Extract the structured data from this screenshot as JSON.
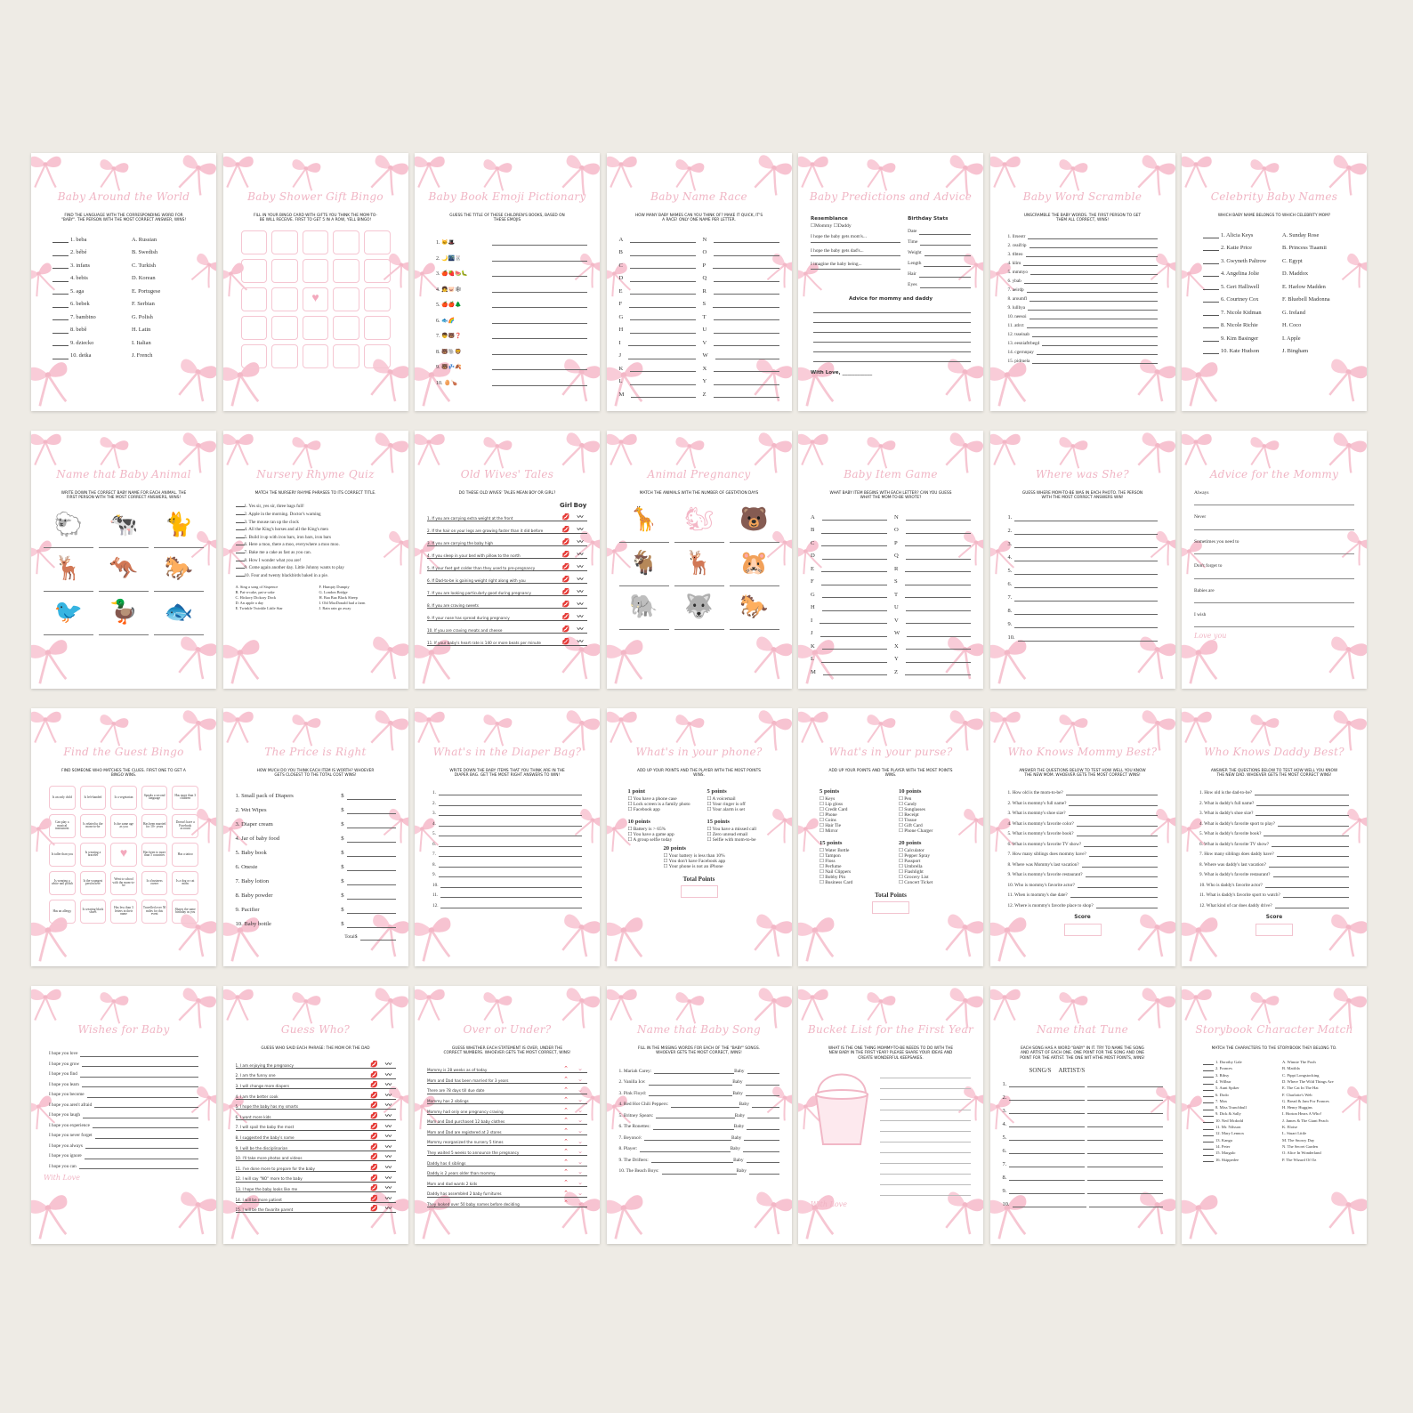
{
  "colors": {
    "background": "#eeebe5",
    "card": "#ffffff",
    "accent_pink": "#f0b5c4",
    "bow_pink": "#f4a9be"
  },
  "cards": [
    {
      "title": "Baby Around the World",
      "subtitle": "Find the language with the corresponding word for \"baby\". The person with the most correct answer, wins!",
      "kind": "match",
      "left": [
        "1. beba",
        "2. bébé",
        "3. infans",
        "4. bebis",
        "5. aga",
        "6. bebek",
        "7. bambino",
        "8. bebê",
        "9. dziecko",
        "10. detka"
      ],
      "right": [
        "A. Russian",
        "B. Swedish",
        "C. Turkish",
        "D. Korean",
        "E. Portugese",
        "F. Serbian",
        "G. Polish",
        "H. Latin",
        "I. Italian",
        "J. French"
      ]
    },
    {
      "title": "Baby Shower Gift Bingo",
      "subtitle": "Fill in your bingo card with gifts you think the mom-to-be will receive. First to get 5 in a row, yell bingo!",
      "kind": "bingo",
      "cells": []
    },
    {
      "title": "Baby Book Emoji Pictionary",
      "subtitle": "Guess the title of these children's books, based on these emojis",
      "kind": "emoji",
      "items": [
        "1. 🐱🎩",
        "2. 🌙🌃🐰",
        "3. 🍎🍓🍉🐛",
        "4. 👧🐷🕸",
        "5. 🍎🍎🌲",
        "6. 🐟🌈",
        "7. 👦🐻❓",
        "8. 🐻🐘🦁",
        "9. 🐻💤🍂",
        "10. 🥚🍗"
      ]
    },
    {
      "title": "Baby Name Race",
      "subtitle": "How many baby names can you think of? Make it quick, it's a race! Only one name per letter.",
      "kind": "letters",
      "left": [
        "A",
        "B",
        "C",
        "D",
        "E",
        "F",
        "G",
        "H",
        "I",
        "J",
        "K",
        "L",
        "M"
      ],
      "right": [
        "N",
        "O",
        "P",
        "Q",
        "R",
        "S",
        "T",
        "U",
        "V",
        "W",
        "X",
        "Y",
        "Z"
      ]
    },
    {
      "title": "Baby Predictions and Advice",
      "subtitle": "",
      "kind": "predictions",
      "resemblance": "Resemblance",
      "mommy": "Mommy",
      "daddy": "Daddy",
      "hopes": [
        "I hope the baby gets mom's...",
        "I hope the baby gets dad's...",
        "I imagine the baby being..."
      ],
      "stats_title": "Birthday Stats",
      "stats": [
        "Date",
        "Time",
        "Weight",
        "Length",
        "Hair",
        "Eyes"
      ],
      "advice": "Advice for mommy and daddy",
      "footer": "With Love,"
    },
    {
      "title": "Baby Word Scramble",
      "subtitle": "Unscramble the baby words. The first person to get them all correct, wins!",
      "kind": "lines",
      "items": [
        "1. llrseotr",
        "2. ceaifrip",
        "3. tlbteo",
        "4. klim",
        "5. mmmyo",
        "6. ybab",
        "7. aeirdp",
        "8. aroumfl",
        "9. lullbya",
        "10. neesoi",
        "11. atlrct",
        "12. tsseinab",
        "13. eesniaftrbegd",
        "14. cgernnpay",
        "15. pidruela"
      ]
    },
    {
      "title": "Celebrity Baby Names",
      "subtitle": "Which baby name belongs to which celebrity mom?",
      "kind": "match",
      "left": [
        "1. Alicia Keys",
        "2. Katie Price",
        "3. Gwyneth Paltrow",
        "4. Angelina Jolie",
        "5. Geri Halliwell",
        "6. Courtney Cox",
        "7. Nicole Kidman",
        "8. Nicole Richie",
        "9. Kim Basinger",
        "10. Kate Hudson"
      ],
      "right": [
        "A. Sunday Rose",
        "B. Princess Tiaamii",
        "C. Egypt",
        "D. Maddox",
        "E. Harlow Madden",
        "F. Bluebell Madonna",
        "G. Ireland",
        "H. Coco",
        "I. Apple",
        "J. Bingham"
      ]
    },
    {
      "title": "Name that Baby Animal",
      "subtitle": "Write down the correct baby name for each animal. The first person with the most correct answers, wins!",
      "kind": "animals",
      "icons": [
        "sheep-icon",
        "cow-icon",
        "cat-icon",
        "deer-icon",
        "kangaroo-icon",
        "horse-icon",
        "bird-icon",
        "duck-icon",
        "fish-icon"
      ]
    },
    {
      "title": "Nursery Rhyme Quiz",
      "subtitle": "Match the nursery rhyme phrases to its correct title.",
      "kind": "rhyme",
      "items": [
        "1. Yes sir, yes sir, three bags full!",
        "2. Apple in the morning. Doctor's warning",
        "3. The mouse ran up the clock",
        "4. All the King's horses and all the King's men",
        "5. Build it up with iron bars, iron bars, iron bars",
        "6. Here a moo, there a moo, everywhere a moo moo.",
        "7. Bake me a cake as fast as you can.",
        "8. How I wonder what you are!",
        "9. Come again another day. Little Johnny wants to play",
        "10. Four and twenty blackbirds baked in a pie."
      ],
      "left": [
        "A. Sing a song of Sixpence",
        "B. Pat-a-cake, pat-a-cake",
        "C. Hickory Dickory Dock",
        "D. An apple a day",
        "E. Twinkle Twinkle Little Star"
      ],
      "right": [
        "F. Humpty Dumpty",
        "G. London Bridge",
        "H. Baa Baa Black Sheep",
        "I. Old MacDonald had a farm",
        "J. Rain rain go away"
      ]
    },
    {
      "title": "Old Wives' Tales",
      "subtitle": "Do these old wives' tales mean boy or girl?",
      "kind": "choice",
      "col_a": "Girl",
      "col_b": "Boy",
      "mark_a": "lips-icon",
      "mark_b": "mustache-icon",
      "items": [
        "1. If you are carrying extra weight at the front",
        "2. If the hair on your legs are growing faster than it did before",
        "3. If you are carrying the baby high",
        "4. If you sleep in your bed with pillow to the north",
        "5. If your feet get colder than they used to pre-pregnancy",
        "6. If Dad-to-be is gaining weight right along with you",
        "7. If you are looking particularly good during pregnancy",
        "8. If you are craving sweets",
        "9. If your nose has spread during pregnancy",
        "10. If you are craving meats and cheese",
        "11. If your baby's heart rate is 140 or more beats per minute"
      ]
    },
    {
      "title": "Animal Pregnancy",
      "subtitle": "Match the animals with the number of gestation days",
      "kind": "animals",
      "icons": [
        "giraffe-icon",
        "squirrel-icon",
        "bear-icon",
        "goat-icon",
        "deer-icon",
        "hamster-icon",
        "elephant-icon",
        "wolf-icon",
        "horse-icon"
      ]
    },
    {
      "title": "Baby Item Game",
      "subtitle": "What baby item begins with each letter? Can you guess what the mom-to-be wrote?",
      "kind": "letters",
      "left": [
        "A",
        "B",
        "C",
        "D",
        "E",
        "F",
        "G",
        "H",
        "I",
        "J",
        "K",
        "L",
        "M"
      ],
      "right": [
        "N",
        "O",
        "P",
        "Q",
        "R",
        "S",
        "T",
        "U",
        "V",
        "W",
        "X",
        "Y",
        "Z"
      ]
    },
    {
      "title": "Where was She?",
      "subtitle": "Guess where mom-to-be was in each photo. The person with the most correct answers win!",
      "kind": "lines",
      "items": [
        "1.",
        "2.",
        "3.",
        "4.",
        "5.",
        "6.",
        "7.",
        "8.",
        "9.",
        "10."
      ]
    },
    {
      "title": "Advice for the Mommy",
      "subtitle": "",
      "kind": "advice",
      "items": [
        "Always",
        "Never",
        "Sometimes you need to",
        "Don't forget to",
        "Babies are",
        "I wish"
      ],
      "footer": "Love you"
    },
    {
      "title": "Find the Guest Bingo",
      "subtitle": "Find someone who matches the clues. First one to get a bingo wins.",
      "kind": "bingo",
      "cells": [
        "Is an only child",
        "Is left-handed",
        "Is a vegetarian",
        "Speaks a second language",
        "Has more than 3 children",
        "Can play a musical instrument",
        "Is related to the mom-to-be",
        "Is the same age as you",
        "Has been married for 10+ years",
        "Doesn't have a Facebook account",
        "Is taller than you",
        "Is wearing a bracelet",
        "",
        "Has been to more than 5 countries",
        "Has a tattoo",
        "Is wearing a white nail polish",
        "Is the youngest person here",
        "Went to school with the mom-to-be",
        "Is a business owner",
        "Is a dog or cat mom",
        "Has an allergy",
        "Is wearing black shoes",
        "Has less than 3 letters in their name",
        "Travelled over 50 miles for this event",
        "Shares the same birthday as you"
      ]
    },
    {
      "title": "The Price is Right",
      "subtitle": "How much do you think each item is worth? Whoever gets closest to the total cost wins!",
      "kind": "price",
      "currency": "$",
      "items": [
        "1. Small pack of Diapers",
        "2. Wet Wipes",
        "3. Diaper cream",
        "4. Jar of baby food",
        "5. Baby book",
        "6. Onesie",
        "7. Baby lotion",
        "8. Baby powder",
        "9. Pacifier",
        "10. Baby bottle"
      ],
      "footer": "Total"
    },
    {
      "title": "What's in the Diaper Bag?",
      "subtitle": "Write down the baby items that you think are in the diaper bag. Get the most right answers to win!",
      "kind": "lines",
      "items": [
        "1.",
        "2.",
        "3.",
        "4.",
        "5.",
        "6.",
        "7.",
        "8.",
        "9.",
        "10.",
        "11.",
        "12."
      ]
    },
    {
      "title": "What's in your phone?",
      "subtitle": "Add up your points and the player with the most points wins.",
      "kind": "points",
      "groups": [
        {
          "label": "1 point",
          "items": [
            "You have a phone case",
            "Lock screen is a family photo",
            "Facebook app"
          ]
        },
        {
          "label": "5 points",
          "items": [
            "A voicemail",
            "Your ringer is off",
            "Your alarm is set"
          ]
        },
        {
          "label": "10 points",
          "items": [
            "Battery is > 65%",
            "You have a game app",
            "A group selfie today"
          ]
        },
        {
          "label": "15 points",
          "items": [
            "You have a missed call",
            "Zero unread email",
            "Selfie with mom-to-be"
          ]
        },
        {
          "label": "20 points",
          "items": [
            "Your battery is less than 10%",
            "You don't have Facebook app",
            "Your phone is not an iPhone"
          ]
        }
      ],
      "footer": "Total Points"
    },
    {
      "title": "What's in your purse?",
      "subtitle": "Add up your points and the player with the most points wins.",
      "kind": "points",
      "groups": [
        {
          "label": "5 points",
          "items": [
            "Keys",
            "Lip gloss",
            "Credit Card",
            "Phone",
            "Coins",
            "Hair Tie",
            "Mirror"
          ]
        },
        {
          "label": "10 points",
          "items": [
            "Pen",
            "Candy",
            "Sunglasses",
            "Receipt",
            "Tissue",
            "Gift Card",
            "Phone Charger"
          ]
        },
        {
          "label": "15 points",
          "items": [
            "Water Bottle",
            "Tampon",
            "Floss",
            "Perfume",
            "Nail Clippers",
            "Bobby Pin",
            "Business Card"
          ]
        },
        {
          "label": "20 points",
          "items": [
            "Calculator",
            "Pepper Spray",
            "Passport",
            "Umbrella",
            "Flashlight",
            "Grocery List",
            "Concert Ticket"
          ]
        }
      ],
      "footer": "Total Points"
    },
    {
      "title": "Who Knows Mommy Best?",
      "subtitle": "Answer the questions below to test how well you know the new mom. Whoever gets the most correct wins!",
      "kind": "lines",
      "items": [
        "1. How old is the mom-to-be?",
        "2. What is mommy's full name?",
        "3. What is mommy's shoe size?",
        "4. What is mommy's favorite color?",
        "5. What is mommy's favorite book?",
        "6. What is mommy's favorite TV show?",
        "7. How many siblings does mommy have?",
        "8. Where was Mommy's last vacation?",
        "9. What is mommy's favorite restaurant?",
        "10. Who is mommy's favorite actor?",
        "11. When is mommy's due date?",
        "12. Where is mommy's favorite place to shop?"
      ],
      "footer": "Score"
    },
    {
      "title": "Who Knows Daddy Best?",
      "subtitle": "Answer the questions below to test how well you know the new dad. Whoever gets the most correct wins!",
      "kind": "lines",
      "items": [
        "1. How old is the dad-to-be?",
        "2. What is daddy's full name?",
        "3. What is daddy's shoe size?",
        "4. What is daddy's favorite sport to play?",
        "5. What is daddy's favorite book?",
        "6. What is daddy's favorite TV show?",
        "7. How many siblings does daddy have?",
        "8. Where was daddy's last vacation?",
        "9. What is daddy's favorite restaurant?",
        "10. Who is daddy's favorite actor?",
        "11. What is daddy's favorite sport to watch?",
        "12. What kind of car does daddy drive?"
      ],
      "footer": "Score"
    },
    {
      "title": "Wishes for Baby",
      "subtitle": "",
      "kind": "lines",
      "items": [
        "I hope you love",
        "I hope you grow",
        "I hope you find",
        "I hope you learn",
        "I hope you become",
        "I hope you aren't afraid",
        "I hope you laugh",
        "I hope you experience",
        "I hope you never forget",
        "I hope you always",
        "I hope you ignore",
        "I hope you can"
      ],
      "script_footer": "With Love"
    },
    {
      "title": "Guess Who?",
      "subtitle": "Guess who said each phrase: the mom or the dad",
      "kind": "choice",
      "col_a": "",
      "col_b": "",
      "mark_a": "lips-icon",
      "mark_b": "mustache-icon",
      "items": [
        "1. I am enjoying the pregnancy",
        "2. I am the funny one",
        "3. I will change more diapers",
        "4. I am the better cook",
        "5. I hope the baby has my smarts",
        "6. I want more kids",
        "7. I will spoil the baby the most",
        "8. I suggested the baby's name",
        "9. I will be the disciplinarian",
        "10. I'll take more photos and videos",
        "11. I've done more to prepare for the baby",
        "12. I will say \"NO\" more to the baby",
        "13. I hope the baby looks like me",
        "14. I will be more patient",
        "15. I will be the favorite parent"
      ]
    },
    {
      "title": "Over or Under?",
      "subtitle": "Guess whether each statement is over, under the correct numbers. Whoever gets the most correct, wins!",
      "kind": "choice",
      "col_a": "",
      "col_b": "",
      "mark_a": "arrow-up-icon",
      "mark_b": "arrow-down-icon",
      "items": [
        "Mommy is 28 weeks as of today",
        "Mom and Dad has been married for 3 years",
        "There are 78 days till due date",
        "Mommy has 2 siblings",
        "Mommy had only one pregnancy craving",
        "Mom and Dad purchased 12 baby clothes",
        "Mom and Dad are registered at 2 stores",
        "Mommy reorganized the nursery 5 times",
        "They waited 5 weeks to announce the pregnancy",
        "Daddy has 4 siblings",
        "Daddy is 2 years older than mommy",
        "Mom and dad wants 2 kids",
        "Daddy has assembled 2 baby furnitures",
        "They looked over 50 baby names before deciding"
      ]
    },
    {
      "title": "Name that Baby Song",
      "subtitle": "Fill in the missing words for each of the \"baby\" songs. Whoever gets the most correct, wins!",
      "kind": "song",
      "baby": "Baby",
      "items": [
        "1. Mariah Carey:",
        "2. Vanilla Ice:",
        "3. Pink Floyd:",
        "4. Red Hot Chili Peppers:",
        "5. Britney Spears:",
        "6. The Ronettes:",
        "7. Beyoncé:",
        "8. Player:",
        "9. The Drifters:",
        "10. The Beach Boys:"
      ]
    },
    {
      "title": "Bucket List for the First Year",
      "subtitle": "What is the one thing mommy-to-be needs to do with the new baby in the first year? Please share your ideas and create wonderful keepsakes.",
      "kind": "bucket",
      "script_footer": "With Love"
    },
    {
      "title": "Name that Tune",
      "subtitle": "Each song has a word \"baby\" in it. Try to name the song and artist of each one. One point for the song and one point for the artist. The one wit hthe most points, wins!",
      "kind": "tune",
      "col_a": "SONG/S",
      "col_b": "ARTIST/S",
      "items": [
        "1.",
        "2.",
        "3.",
        "4.",
        "5.",
        "6.",
        "7.",
        "8.",
        "9.",
        "10."
      ]
    },
    {
      "title": "Storybook Character Match",
      "subtitle": "Match the characters to the storybook they belong to.",
      "kind": "match",
      "left": [
        "1. Dorothy Gale",
        "2. Frances",
        "3. Ribsy",
        "4. Wilbur",
        "5. Aunt Spiker",
        "6. Dodo",
        "7. Max",
        "8. Miss Trunchbull",
        "9. Dick & Sally",
        "10. Ned Mcdodd",
        "11. Mr. Nilsson",
        "12. Mary Lennox",
        "13. Kanga",
        "14. Peter",
        "15. Margalo",
        "16. Skippedee"
      ],
      "right": [
        "A. Winnie The Pooh",
        "B. Matilda",
        "C. Pippi Longstocking",
        "D. Where The Wild Things Are",
        "E. The Cat In The Hat",
        "F. Charlotte's Web",
        "G. Bread & Jam For Frances",
        "H. Henry Huggins",
        "I. Horton Hears A Who!",
        "J. James & The Giant Peach",
        "K. Eloise",
        "L. Stuart Little",
        "M. The Snowy Day",
        "N. The Secret Garden",
        "O. Alice In Wonderland",
        "P. The Wizard Of Oz"
      ]
    }
  ]
}
